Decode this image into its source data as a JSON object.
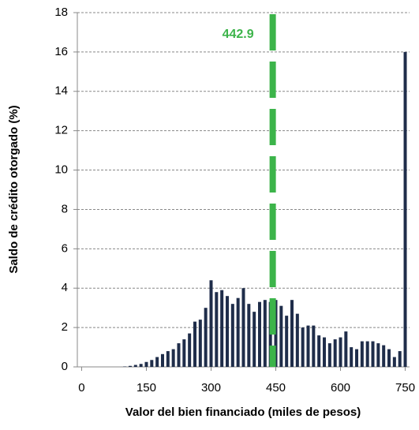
{
  "chart_data": {
    "type": "bar",
    "x_label": "Valor del bien financiado (miles de pesos)",
    "y_label": "Saldo de crédito otorgado (%)",
    "x": [
      0,
      12.5,
      25,
      37.5,
      50,
      62.5,
      75,
      87.5,
      100,
      112.5,
      125,
      137.5,
      150,
      162.5,
      175,
      187.5,
      200,
      212.5,
      225,
      237.5,
      250,
      262.5,
      275,
      287.5,
      300,
      312.5,
      325,
      337.5,
      350,
      362.5,
      375,
      387.5,
      400,
      412.5,
      425,
      437.5,
      450,
      462.5,
      475,
      487.5,
      500,
      512.5,
      525,
      537.5,
      550,
      562.5,
      575,
      587.5,
      600,
      612.5,
      625,
      637.5,
      650,
      662.5,
      675,
      687.5,
      700,
      712.5,
      725,
      737.5,
      750
    ],
    "values": [
      0,
      0,
      0,
      0,
      0,
      0,
      0,
      0,
      0.02,
      0.05,
      0.1,
      0.15,
      0.25,
      0.35,
      0.5,
      0.65,
      0.8,
      0.9,
      1.2,
      1.4,
      1.7,
      2.3,
      2.4,
      3.0,
      4.4,
      3.8,
      3.9,
      3.6,
      3.2,
      3.5,
      4.0,
      3.2,
      2.8,
      3.3,
      3.4,
      3.3,
      3.4,
      3.1,
      2.6,
      3.4,
      2.7,
      2.0,
      2.1,
      2.1,
      1.6,
      1.5,
      1.2,
      1.4,
      1.5,
      1.8,
      1.0,
      0.9,
      1.3,
      1.3,
      1.3,
      1.2,
      1.1,
      0.9,
      0.5,
      0.8,
      16
    ],
    "color": "#1f2d4a",
    "xlim": [
      -10,
      760
    ],
    "xticks": [
      0,
      150,
      300,
      450,
      600,
      750
    ],
    "ylim": [
      0,
      18
    ],
    "yticks": [
      0,
      2,
      4,
      6,
      8,
      10,
      12,
      14,
      16,
      18
    ],
    "grid": true,
    "reference_line": {
      "value": 442.9,
      "label": "442.9",
      "color": "#3cb44a"
    }
  }
}
